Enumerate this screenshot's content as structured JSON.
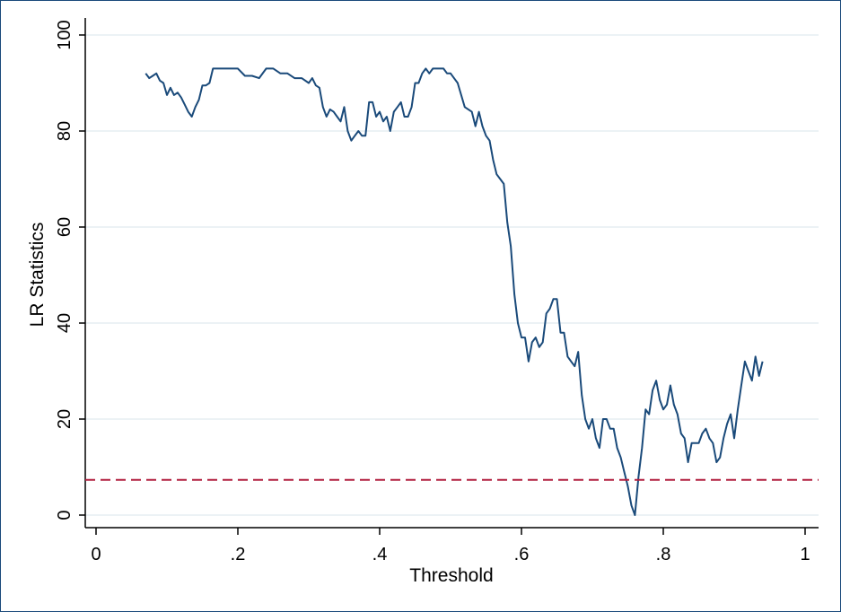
{
  "chart_data": {
    "type": "line",
    "title": "",
    "xlabel": "Threshold",
    "ylabel": "LR Statistics",
    "xlim": [
      0,
      1
    ],
    "ylim": [
      0,
      100
    ],
    "grid": true,
    "x_ticks": [
      {
        "value": 0,
        "label": "0"
      },
      {
        "value": 0.2,
        "label": ".2"
      },
      {
        "value": 0.4,
        "label": ".4"
      },
      {
        "value": 0.6,
        "label": ".6"
      },
      {
        "value": 0.8,
        "label": ".8"
      },
      {
        "value": 1,
        "label": "1"
      }
    ],
    "y_ticks": [
      {
        "value": 0,
        "label": "0"
      },
      {
        "value": 20,
        "label": "20"
      },
      {
        "value": 40,
        "label": "40"
      },
      {
        "value": 60,
        "label": "60"
      },
      {
        "value": 80,
        "label": "80"
      },
      {
        "value": 100,
        "label": "100"
      }
    ],
    "series": [
      {
        "color": "#1a4a7a",
        "x": [
          0.07,
          0.075,
          0.08,
          0.085,
          0.09,
          0.095,
          0.1,
          0.105,
          0.11,
          0.115,
          0.12,
          0.125,
          0.13,
          0.135,
          0.14,
          0.145,
          0.15,
          0.155,
          0.16,
          0.165,
          0.17,
          0.175,
          0.18,
          0.185,
          0.19,
          0.2,
          0.21,
          0.22,
          0.23,
          0.24,
          0.25,
          0.26,
          0.27,
          0.28,
          0.29,
          0.3,
          0.305,
          0.31,
          0.315,
          0.32,
          0.325,
          0.33,
          0.335,
          0.34,
          0.345,
          0.35,
          0.355,
          0.36,
          0.365,
          0.37,
          0.375,
          0.38,
          0.385,
          0.39,
          0.395,
          0.4,
          0.405,
          0.41,
          0.415,
          0.42,
          0.425,
          0.43,
          0.435,
          0.44,
          0.445,
          0.45,
          0.455,
          0.46,
          0.465,
          0.47,
          0.475,
          0.48,
          0.485,
          0.49,
          0.495,
          0.5,
          0.51,
          0.52,
          0.53,
          0.535,
          0.54,
          0.545,
          0.55,
          0.555,
          0.56,
          0.565,
          0.57,
          0.575,
          0.58,
          0.585,
          0.59,
          0.595,
          0.6,
          0.605,
          0.61,
          0.615,
          0.62,
          0.625,
          0.63,
          0.635,
          0.64,
          0.645,
          0.65,
          0.655,
          0.66,
          0.665,
          0.67,
          0.675,
          0.68,
          0.685,
          0.69,
          0.695,
          0.7,
          0.705,
          0.71,
          0.715,
          0.72,
          0.725,
          0.73,
          0.735,
          0.74,
          0.745,
          0.75,
          0.755,
          0.76,
          0.765,
          0.77,
          0.775,
          0.78,
          0.785,
          0.79,
          0.795,
          0.8,
          0.805,
          0.81,
          0.815,
          0.82,
          0.825,
          0.83,
          0.835,
          0.84,
          0.845,
          0.85,
          0.855,
          0.86,
          0.865,
          0.87,
          0.875,
          0.88,
          0.885,
          0.89,
          0.895,
          0.9,
          0.905,
          0.91,
          0.915,
          0.92,
          0.925,
          0.93,
          0.935,
          0.94
        ],
        "y": [
          92,
          91,
          91.5,
          92,
          90.5,
          90,
          87.5,
          89,
          87.5,
          88,
          87,
          85.5,
          84,
          83,
          85,
          86.5,
          89.5,
          89.5,
          90,
          93,
          93,
          93,
          93,
          93,
          93,
          93,
          91.5,
          91.5,
          91,
          93,
          93,
          92,
          92,
          91,
          91,
          90,
          91,
          89.5,
          89,
          85,
          83,
          84.5,
          84,
          83,
          82,
          85,
          80,
          78,
          79,
          80,
          79,
          79,
          86,
          86,
          83,
          84,
          82,
          83,
          80,
          84,
          85,
          86,
          83,
          83,
          85,
          90,
          90,
          92,
          93,
          92,
          93,
          93,
          93,
          93,
          92,
          92,
          90,
          85,
          84,
          81,
          84,
          81,
          79,
          78,
          74,
          71,
          70,
          69,
          61,
          56,
          46,
          40,
          37,
          37,
          32,
          36,
          37,
          35,
          36,
          42,
          43,
          45,
          45,
          38,
          38,
          33,
          32,
          31,
          34,
          25,
          20,
          18,
          20,
          16,
          14,
          20,
          20,
          18,
          18,
          14,
          12,
          9,
          6,
          2,
          0,
          8,
          14,
          22,
          21,
          26,
          28,
          24,
          22,
          23,
          27,
          23,
          21,
          17,
          16,
          11,
          15,
          15,
          15,
          17,
          18,
          16,
          15,
          11,
          12,
          16,
          19,
          21,
          16,
          22,
          27,
          32,
          30,
          28,
          33,
          29,
          32
        ]
      },
      {
        "color": "#b22040",
        "style": "dashed",
        "x": [
          0,
          1
        ],
        "y": [
          7.35,
          7.35
        ]
      }
    ]
  }
}
